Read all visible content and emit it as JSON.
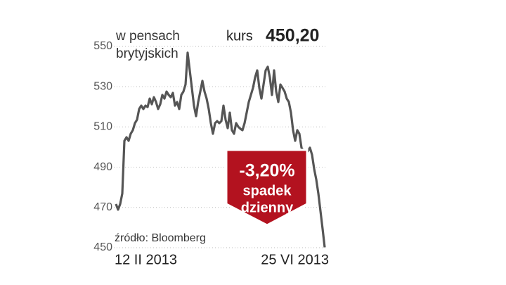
{
  "chart_data": {
    "type": "line",
    "subtitle_lines": [
      "w pensach",
      "brytyjskich"
    ],
    "price_caption": "kurs",
    "price_label": "450,20",
    "change_label": "-3,20%",
    "change_caption_lines": [
      "spadek",
      "dzienny"
    ],
    "source": "źródło: Bloomberg",
    "categories": [
      "12 II 2013",
      null,
      null,
      null,
      null,
      null,
      null,
      null,
      null,
      null,
      null,
      null,
      null,
      null,
      null,
      null,
      null,
      null,
      null,
      null,
      null,
      null,
      null,
      null,
      null,
      null,
      null,
      null,
      null,
      null,
      null,
      null,
      null,
      null,
      null,
      null,
      null,
      null,
      null,
      null,
      null,
      null,
      null,
      null,
      null,
      null,
      null,
      null,
      null,
      null,
      null,
      null,
      null,
      null,
      null,
      null,
      null,
      null,
      null,
      null,
      null,
      null,
      null,
      null,
      null,
      null,
      null,
      null,
      null,
      null,
      null,
      null,
      null,
      null,
      null,
      null,
      null,
      null,
      null,
      null,
      null,
      null,
      null,
      null,
      null,
      null,
      null,
      null,
      null,
      null,
      null,
      null,
      null,
      null,
      null,
      null,
      null,
      null,
      null,
      "25 VI 2013"
    ],
    "values": [
      471.7,
      468.9,
      471.7,
      476.9,
      503.1,
      504.9,
      503.1,
      506.6,
      508.4,
      511.9,
      513.6,
      518.9,
      520.6,
      518.9,
      520.6,
      519.9,
      524.1,
      521.3,
      524.8,
      522.4,
      518.9,
      521.3,
      525.9,
      524.1,
      527.6,
      525.9,
      524.8,
      526.9,
      520.6,
      522.4,
      518.9,
      525.9,
      527.6,
      531.1,
      546.9,
      538.1,
      529.4,
      520.6,
      515.4,
      522.4,
      527.6,
      532.9,
      527.6,
      524.1,
      518.9,
      511.9,
      506.6,
      511.9,
      512.9,
      511.9,
      512.9,
      520.6,
      513.6,
      509.4,
      517.1,
      508.4,
      506.6,
      511.9,
      510.1,
      509.1,
      508.4,
      511.9,
      517.1,
      522.4,
      525.9,
      529.4,
      534.6,
      538.1,
      529.4,
      524.1,
      531.1,
      538.1,
      539.9,
      534.6,
      525.9,
      538.1,
      527.6,
      522.4,
      531.1,
      529.4,
      527.6,
      524.1,
      522.4,
      517.1,
      508.4,
      503.1,
      508.4,
      506.6,
      499.7,
      497.9,
      497.9,
      497.9,
      499.7,
      496.2,
      489.2,
      483.9,
      476.9,
      468.2,
      459.4,
      450.2
    ],
    "color": "#555555",
    "badge_color": "#b3121f",
    "ylim": [
      450,
      550
    ],
    "yticks": [
      450,
      470,
      490,
      510,
      530,
      550
    ],
    "grid": true
  }
}
